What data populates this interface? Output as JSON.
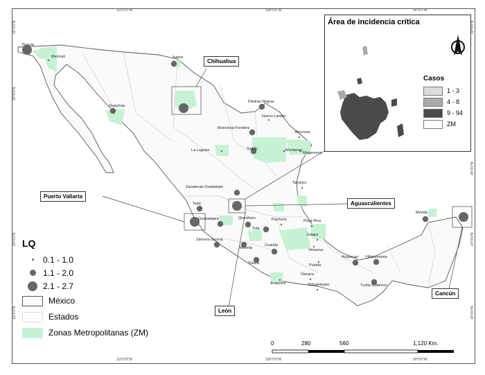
{
  "ticks": {
    "top": [
      "110°0'0\"W",
      "100°0'0\"W",
      "90°0'0\"W"
    ],
    "bottom": [
      "110°0'0\"W",
      "100°0'0\"W",
      "90°0'0\"W"
    ],
    "left": [
      "30°0'0\"N",
      "25°0'0\"N",
      "20°0'0\"N",
      "15°0'0\"N"
    ],
    "right": [
      "30°0'0\"N",
      "25°0'0\"N",
      "20°0'0\"N",
      "15°0'0\"N"
    ]
  },
  "callouts": {
    "chihuahua": "Chihuahua",
    "puerto_vallarta": "Puerto Vallarta",
    "aguascalientes": "Aguascalientes",
    "leon": "León",
    "cancun": "Cancún"
  },
  "cities": [
    "Tijuana",
    "Mexicali",
    "Juárez",
    "Guaymas",
    "Piedras Negras",
    "Nuevo Laredo",
    "Monclova-Frontera",
    "Reynosa",
    "La Laguna",
    "Saltillo",
    "Monterrey",
    "Matamoros",
    "Zacatecas-Guadalupe",
    "Tampico",
    "Tepic",
    "Mérida",
    "Guadalajara",
    "Querétaro",
    "Pachuca",
    "Poza Rica",
    "Tula",
    "Zamora-Jacona",
    "Morelia",
    "Xalapa",
    "Veracruz",
    "Cuautla",
    "Toluca",
    "Villahermosa",
    "Puebla",
    "Acayucan",
    "Oaxaca",
    "Acapulco",
    "Tuxtla Gutiérrez",
    "Tehuantepec"
  ],
  "inset": {
    "title": "Área de incidencia crítica",
    "north": "N",
    "casos_title": "Casos",
    "classes": [
      {
        "label": "1 - 3",
        "color": "#dddddd"
      },
      {
        "label": "4 - 8",
        "color": "#aaaaaa"
      },
      {
        "label": "9 - 94",
        "color": "#4a4a4a"
      },
      {
        "label": "ZM",
        "color": "#ffffff"
      }
    ]
  },
  "legend": {
    "lq_title": "LQ",
    "lq_classes": [
      "0.1 - 1.0",
      "1.1 - 2.0",
      "2.1 - 2.7"
    ],
    "mexico": "México",
    "estados": "Estados",
    "zm": "Zonas Metropolitanas (ZM)",
    "zm_color": "#c7f1d3"
  },
  "scale": {
    "labels": [
      "0",
      "280",
      "560",
      "1,120 Km."
    ]
  }
}
